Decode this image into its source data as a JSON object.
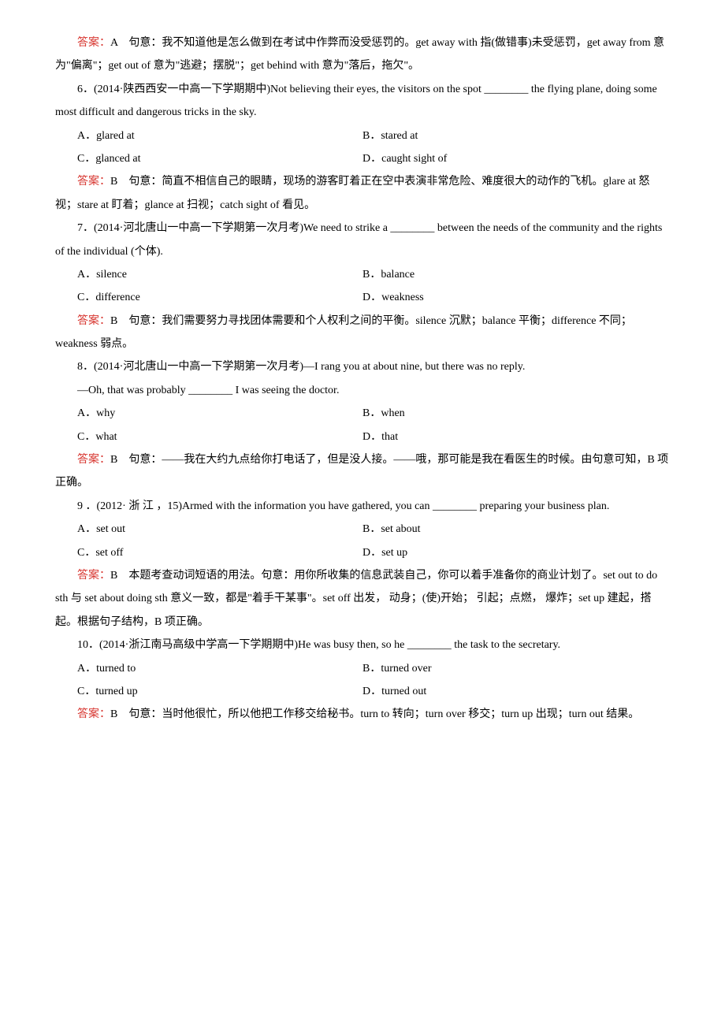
{
  "q5": {
    "answer_prefix": "答案：",
    "answer_letter": "A",
    "explanation": "　句意：我不知道他是怎么做到在考试中作弊而没受惩罚的。get away with 指(做错事)未受惩罚，get away from 意为\"偏离\"；get out of 意为\"逃避；摆脱\"；get behind with 意为\"落后，拖欠\"。"
  },
  "q6": {
    "stem1": "6．(2014·陕西西安一中高一下学期期中)Not believing their eyes, the visitors on the spot ________ the flying plane, doing some most difficult and dangerous tricks in the sky.",
    "optA": "A．glared at",
    "optB": "B．stared at",
    "optC": "C．glanced at",
    "optD": "D．caught sight of",
    "answer_prefix": "答案：",
    "answer_letter": "B",
    "explanation": "　句意：简直不相信自己的眼睛，现场的游客盯着正在空中表演非常危险、难度很大的动作的飞机。glare at 怒视；stare at 盯着；glance at 扫视；catch sight of 看见。"
  },
  "q7": {
    "stem": "7．(2014·河北唐山一中高一下学期第一次月考)We need to strike a ________ between the needs of the community and the rights of the individual (个体).",
    "optA": "A．silence",
    "optB": "B．balance",
    "optC": "C．difference",
    "optD": "D．weakness",
    "answer_prefix": "答案：",
    "answer_letter": "B",
    "explanation": "　句意：我们需要努力寻找团体需要和个人权利之间的平衡。silence 沉默；balance 平衡；difference 不同；weakness 弱点。"
  },
  "q8": {
    "stem": "8．(2014·河北唐山一中高一下学期第一次月考)—I rang you at about nine, but there was no reply.",
    "stem2": "—Oh, that was probably ________ I was seeing the doctor.",
    "optA": "A．why",
    "optB": "B．when",
    "optC": "C．what",
    "optD": "D．that",
    "answer_prefix": "答案：",
    "answer_letter": "B",
    "explanation": "　句意：——我在大约九点给你打电话了，但是没人接。——哦，那可能是我在看医生的时候。由句意可知，B 项正确。"
  },
  "q9": {
    "stem": "9 ．(2012· 浙 江 ，15)Armed with the information you have gathered, you can ________ preparing your business plan.",
    "optA": "A．set out",
    "optB": "B．set about",
    "optC": "C．set off",
    "optD": "D．set up",
    "answer_prefix": "答案：",
    "answer_letter": "B",
    "explanation": "　本题考查动词短语的用法。句意：用你所收集的信息武装自己，你可以着手准备你的商业计划了。set out to do sth 与 set about doing sth 意义一致，都是\"着手干某事\"。set off 出发，  动身；(使)开始；  引起；点燃，  爆炸；set up 建起，搭起。根据句子结构，B 项正确。"
  },
  "q10": {
    "stem": "10．(2014·浙江南马高级中学高一下学期期中)He was busy then, so he ________ the task to the secretary.",
    "optA": "A．turned to",
    "optB": "B．turned over",
    "optC": "C．turned up",
    "optD": "D．turned out",
    "answer_prefix": "答案：",
    "answer_letter": "B",
    "explanation": "　句意：当时他很忙，所以他把工作移交给秘书。turn to 转向；turn over 移交；turn up 出现；turn out 结果。"
  }
}
